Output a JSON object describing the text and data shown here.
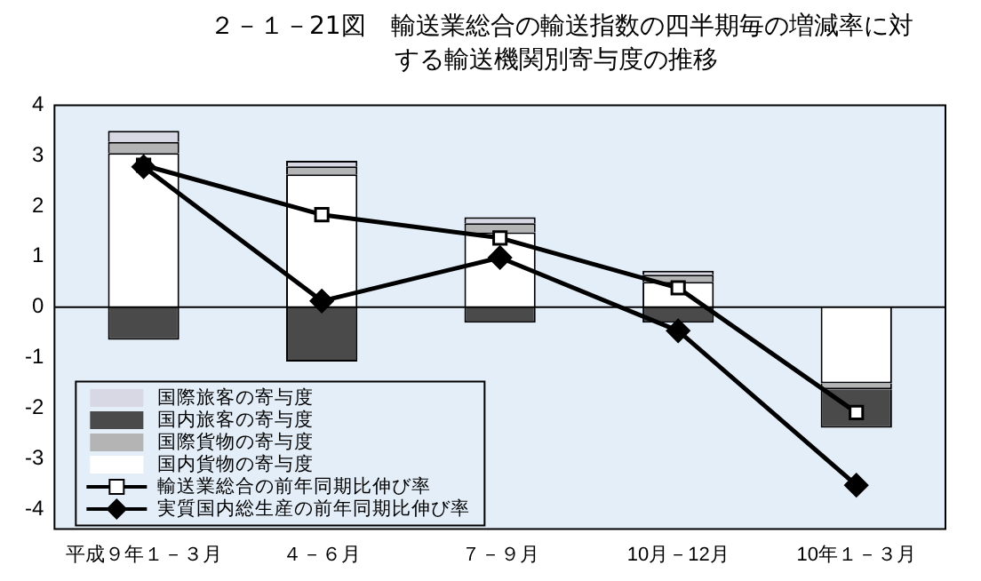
{
  "chart_data": {
    "type": "bar",
    "title": "２－１－21図　輸送業総合の輸送指数の四半期毎の増減率に対する輸送機関別寄与度の推移",
    "categories": [
      "平成９年１－３月",
      "４－６月",
      "７－９月",
      "10月－12月",
      "10年１－３月"
    ],
    "stacked": true,
    "series": [
      {
        "name": "国内貨物の寄与度",
        "color": "#ffffff",
        "values": [
          3.05,
          2.63,
          1.48,
          0.5,
          -1.51
        ]
      },
      {
        "name": "国際貨物の寄与度",
        "color": "#b4b4b4",
        "values": [
          0.22,
          0.16,
          0.18,
          0.14,
          -0.12
        ]
      },
      {
        "name": "国際旅客の寄与度",
        "color": "#d8d8e4",
        "values": [
          0.22,
          0.11,
          0.12,
          0.08,
          0
        ]
      },
      {
        "name": "国内旅客の寄与度",
        "color": "#4a4a4a",
        "values": [
          -0.65,
          -1.08,
          -0.31,
          -0.31,
          -0.76
        ]
      },
      {
        "name": "輸送業総合の前年同期比伸び率",
        "type": "line",
        "color": "#000000",
        "marker": "square",
        "values": [
          2.81,
          1.83,
          1.37,
          0.38,
          -2.09
        ]
      },
      {
        "name": "実質国内総生産の前年同期比伸び率",
        "type": "line",
        "color": "#000000",
        "marker": "diamond",
        "values": [
          2.78,
          0.12,
          0.98,
          -0.47,
          -3.53
        ]
      }
    ],
    "ylim": [
      -4.4,
      4
    ],
    "yticks": [
      -4,
      -3,
      -2,
      -1,
      0,
      1,
      2,
      3,
      4
    ],
    "ref_lines": [
      {
        "axis": "y",
        "value": 0
      }
    ],
    "grid": false,
    "legend": "bottom left"
  }
}
